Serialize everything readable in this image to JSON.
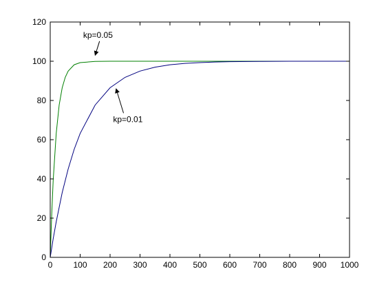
{
  "chart_data": {
    "type": "line",
    "title": "",
    "xlabel": "",
    "ylabel": "",
    "xlim": [
      0,
      1000
    ],
    "ylim": [
      0,
      120
    ],
    "x_ticks": [
      0,
      100,
      200,
      300,
      400,
      500,
      600,
      700,
      800,
      900,
      1000
    ],
    "y_ticks": [
      0,
      20,
      40,
      60,
      80,
      100,
      120
    ],
    "grid": false,
    "legend": "none",
    "series": [
      {
        "color": "#007f00",
        "x": [
          0,
          5,
          10,
          20,
          30,
          40,
          50,
          60,
          80,
          100,
          150,
          200,
          300,
          400,
          500,
          600,
          700,
          800,
          900,
          1000
        ],
        "y": [
          0,
          22.1,
          39.3,
          63.2,
          77.7,
          86.5,
          91.8,
          95.0,
          98.2,
          99.3,
          99.9,
          100,
          100,
          100,
          100,
          100,
          100,
          100,
          100,
          100
        ]
      },
      {
        "color": "#00007f",
        "x": [
          0,
          10,
          20,
          40,
          60,
          80,
          100,
          150,
          200,
          250,
          300,
          350,
          400,
          450,
          500,
          550,
          600,
          700,
          800,
          900,
          1000
        ],
        "y": [
          0,
          9.5,
          18.1,
          33.0,
          45.1,
          55.1,
          63.2,
          77.7,
          86.5,
          91.8,
          95.0,
          97.0,
          98.2,
          98.9,
          99.3,
          99.6,
          99.8,
          99.9,
          100,
          100,
          100
        ]
      }
    ],
    "annotations": [
      {
        "text": "kp=0.05",
        "x": 110,
        "y": 112,
        "arrow_to": [
          150,
          103
        ]
      },
      {
        "text": "kp=0.01",
        "x": 210,
        "y": 69,
        "arrow_to": [
          220,
          86
        ]
      }
    ]
  }
}
